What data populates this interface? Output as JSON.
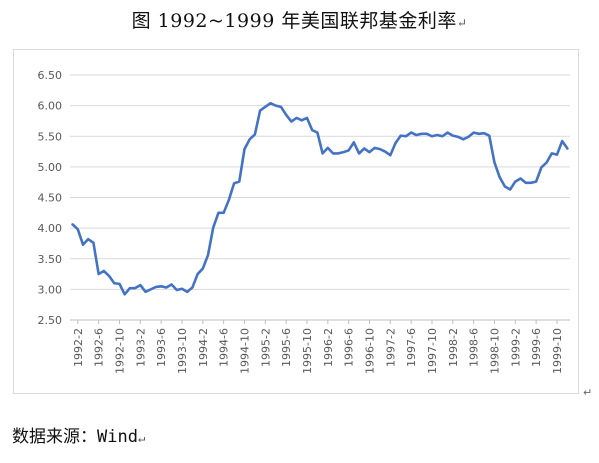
{
  "title": "图 1992~1999 年美国联邦基金利率",
  "paragraph_mark": "↵",
  "source_note": "数据来源：Wind",
  "chart_data": {
    "type": "line",
    "title": "",
    "xlabel": "",
    "ylabel": "",
    "ylim": [
      2.5,
      6.5
    ],
    "yticks": [
      "6.50",
      "6.00",
      "5.50",
      "5.00",
      "4.50",
      "4.00",
      "3.50",
      "3.00",
      "2.50"
    ],
    "grid": true,
    "legend": "none",
    "line_color": "#4472c4",
    "tick_labels": [
      "1992-2",
      "1992-6",
      "1992-10",
      "1993-2",
      "1993-6",
      "1993-10",
      "1994-2",
      "1994-6",
      "1994-10",
      "1995-2",
      "1995-6",
      "1995-10",
      "1996-2",
      "1996-6",
      "1996-10",
      "1997-2",
      "1997-6",
      "1997-10",
      "1998-2",
      "1998-6",
      "1998-10",
      "1999-2",
      "1999-6",
      "1999-10"
    ],
    "x": [
      "1992-1",
      "1992-2",
      "1992-3",
      "1992-4",
      "1992-5",
      "1992-6",
      "1992-7",
      "1992-8",
      "1992-9",
      "1992-10",
      "1992-11",
      "1992-12",
      "1993-1",
      "1993-2",
      "1993-3",
      "1993-4",
      "1993-5",
      "1993-6",
      "1993-7",
      "1993-8",
      "1993-9",
      "1993-10",
      "1993-11",
      "1993-12",
      "1994-1",
      "1994-2",
      "1994-3",
      "1994-4",
      "1994-5",
      "1994-6",
      "1994-7",
      "1994-8",
      "1994-9",
      "1994-10",
      "1994-11",
      "1994-12",
      "1995-1",
      "1995-2",
      "1995-3",
      "1995-4",
      "1995-5",
      "1995-6",
      "1995-7",
      "1995-8",
      "1995-9",
      "1995-10",
      "1995-11",
      "1995-12",
      "1996-1",
      "1996-2",
      "1996-3",
      "1996-4",
      "1996-5",
      "1996-6",
      "1996-7",
      "1996-8",
      "1996-9",
      "1996-10",
      "1996-11",
      "1996-12",
      "1997-1",
      "1997-2",
      "1997-3",
      "1997-4",
      "1997-5",
      "1997-6",
      "1997-7",
      "1997-8",
      "1997-9",
      "1997-10",
      "1997-11",
      "1997-12",
      "1998-1",
      "1998-2",
      "1998-3",
      "1998-4",
      "1998-5",
      "1998-6",
      "1998-7",
      "1998-8",
      "1998-9",
      "1998-10",
      "1998-11",
      "1998-12",
      "1999-1",
      "1999-2",
      "1999-3",
      "1999-4",
      "1999-5",
      "1999-6",
      "1999-7",
      "1999-8",
      "1999-9",
      "1999-10",
      "1999-11",
      "1999-12"
    ],
    "values": [
      4.06,
      3.98,
      3.73,
      3.82,
      3.76,
      3.25,
      3.3,
      3.22,
      3.1,
      3.09,
      2.92,
      3.02,
      3.02,
      3.07,
      2.96,
      3.0,
      3.04,
      3.05,
      3.03,
      3.08,
      2.99,
      3.01,
      2.96,
      3.03,
      3.25,
      3.34,
      3.56,
      4.01,
      4.25,
      4.25,
      4.46,
      4.73,
      4.76,
      5.29,
      5.45,
      5.53,
      5.92,
      5.98,
      6.04,
      6.0,
      5.98,
      5.85,
      5.74,
      5.8,
      5.76,
      5.8,
      5.6,
      5.56,
      5.22,
      5.31,
      5.22,
      5.22,
      5.24,
      5.27,
      5.4,
      5.22,
      5.3,
      5.24,
      5.31,
      5.29,
      5.25,
      5.19,
      5.39,
      5.51,
      5.5,
      5.56,
      5.52,
      5.54,
      5.54,
      5.5,
      5.52,
      5.5,
      5.56,
      5.51,
      5.49,
      5.45,
      5.49,
      5.56,
      5.54,
      5.55,
      5.51,
      5.07,
      4.83,
      4.68,
      4.63,
      4.76,
      4.81,
      4.74,
      4.74,
      4.76,
      4.99,
      5.07,
      5.22,
      5.2,
      5.42,
      5.3
    ]
  }
}
